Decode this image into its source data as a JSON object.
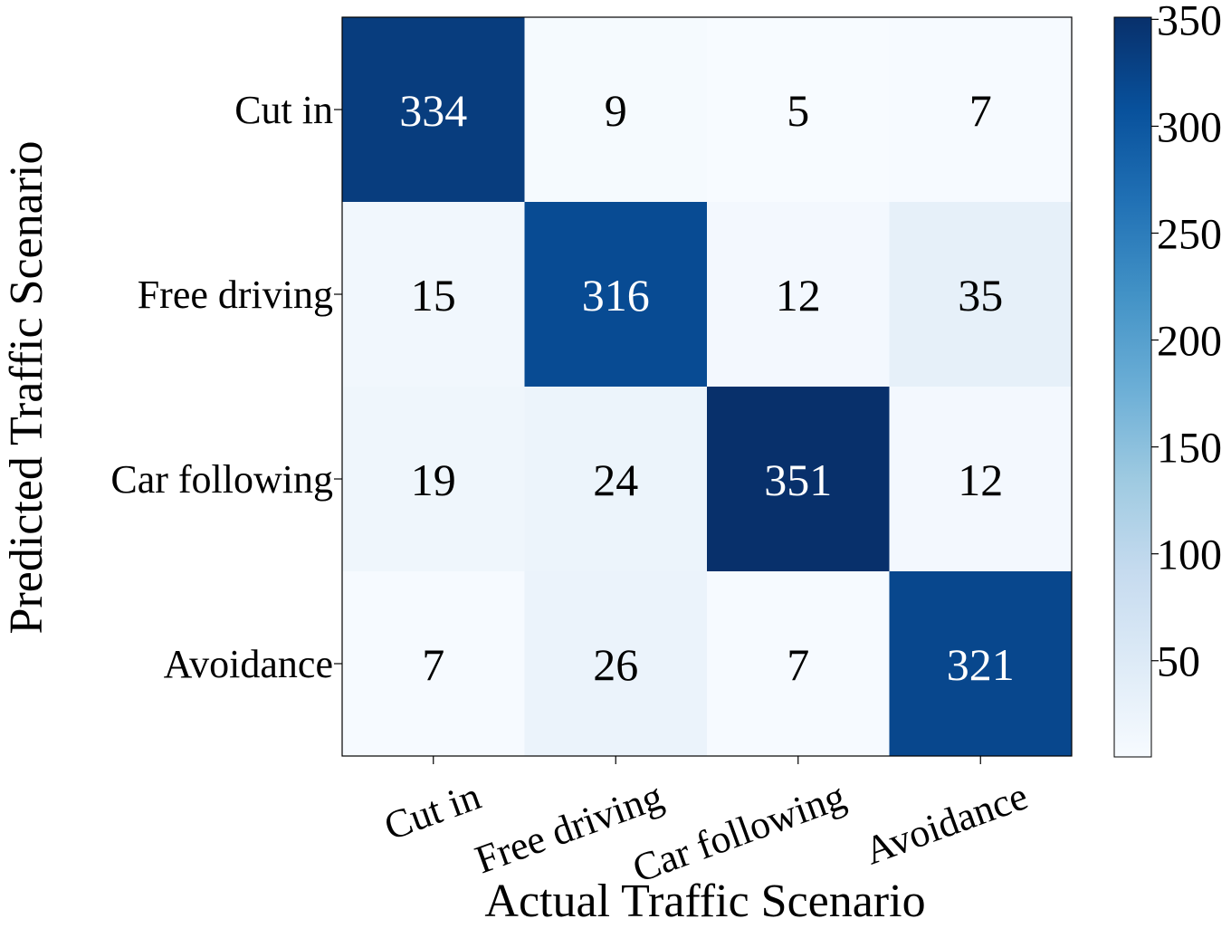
{
  "chart_data": {
    "type": "heatmap",
    "title": "",
    "xlabel": "Actual Traffic Scenario",
    "ylabel": "Predicted Traffic Scenario",
    "x_categories": [
      "Cut in",
      "Free driving",
      "Car following",
      "Avoidance"
    ],
    "y_categories": [
      "Cut in",
      "Free driving",
      "Car following",
      "Avoidance"
    ],
    "values": [
      [
        334,
        9,
        5,
        7
      ],
      [
        15,
        316,
        12,
        35
      ],
      [
        19,
        24,
        351,
        12
      ],
      [
        7,
        26,
        7,
        321
      ]
    ],
    "colormap": "Blues",
    "colorbar": {
      "range": [
        5,
        351
      ],
      "ticks": [
        50,
        100,
        150,
        200,
        250,
        300,
        350
      ]
    },
    "colors": {
      "low": "#f7fbff",
      "high": "#08306b",
      "text_light": "#ffffff",
      "text_dark": "#000000"
    }
  }
}
